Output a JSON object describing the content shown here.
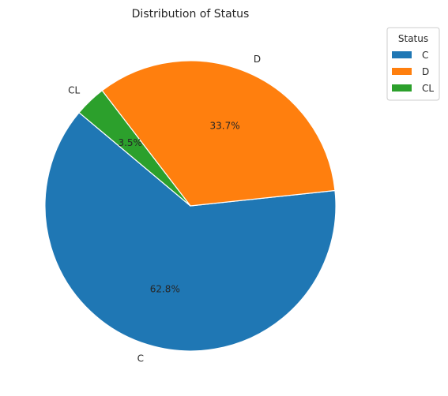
{
  "chart_data": {
    "type": "pie",
    "title": "Distribution of Status",
    "categories": [
      "C",
      "D",
      "CL"
    ],
    "values": [
      62.8,
      33.7,
      3.5
    ],
    "percent_labels": [
      "62.8%",
      "33.7%",
      "3.5%"
    ],
    "colors": [
      "#1f77b4",
      "#ff7f0e",
      "#2ca02c"
    ],
    "start_angle_deg": 140,
    "direction": "counterclockwise",
    "legend": {
      "title": "Status",
      "placement": "upper-right outside",
      "entries": [
        "C",
        "D",
        "CL"
      ]
    }
  }
}
